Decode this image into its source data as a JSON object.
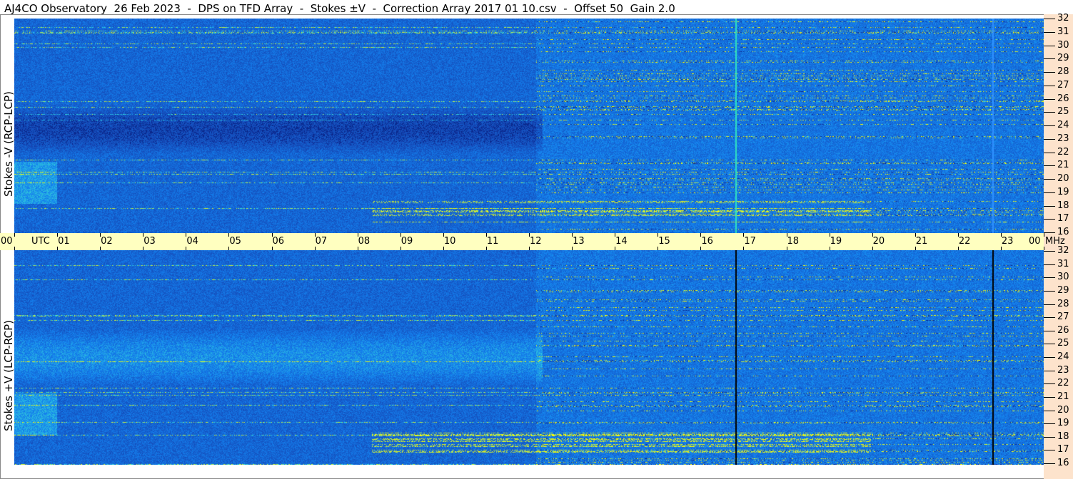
{
  "title": "AJ4CO Observatory  26 Feb 2023  -  DPS on TFD Array  -  Stokes ±V  -  Correction Array 2017 01 10.csv  -  Offset 50  Gain 2.0",
  "chart_data": [
    {
      "type": "heatmap",
      "ylabel": "Stokes -V (RCP-LCP)",
      "ylim": [
        16,
        32
      ],
      "y_ticks": [
        "16",
        "17",
        "18",
        "19",
        "20",
        "21",
        "22",
        "23",
        "24",
        "25",
        "26",
        "27",
        "28",
        "29",
        "30",
        "31",
        "32"
      ],
      "y_unit": "MHz",
      "x_ticks": [
        "00",
        "01",
        "02",
        "03",
        "04",
        "05",
        "06",
        "07",
        "08",
        "09",
        "10",
        "11",
        "12",
        "13",
        "14",
        "15",
        "16",
        "17",
        "18",
        "19",
        "20",
        "21",
        "22",
        "23",
        "00"
      ],
      "x_unit": "UTC",
      "colors": {
        "low": "#0a2a90",
        "mid": "#1e6ee8",
        "high": "#40e0e0",
        "peak": "#ffff00"
      }
    },
    {
      "type": "heatmap",
      "ylabel": "Stokes +V (LCP-RCP)",
      "ylim": [
        16,
        32
      ],
      "y_ticks": [
        "16",
        "17",
        "18",
        "19",
        "20",
        "21",
        "22",
        "23",
        "24",
        "25",
        "26",
        "27",
        "28",
        "29",
        "30",
        "31",
        "32"
      ],
      "y_unit": "MHz",
      "x_ticks": [
        "00",
        "01",
        "02",
        "03",
        "04",
        "05",
        "06",
        "07",
        "08",
        "09",
        "10",
        "11",
        "12",
        "13",
        "14",
        "15",
        "16",
        "17",
        "18",
        "19",
        "20",
        "21",
        "22",
        "23",
        "00"
      ],
      "x_unit": "UTC"
    }
  ]
}
